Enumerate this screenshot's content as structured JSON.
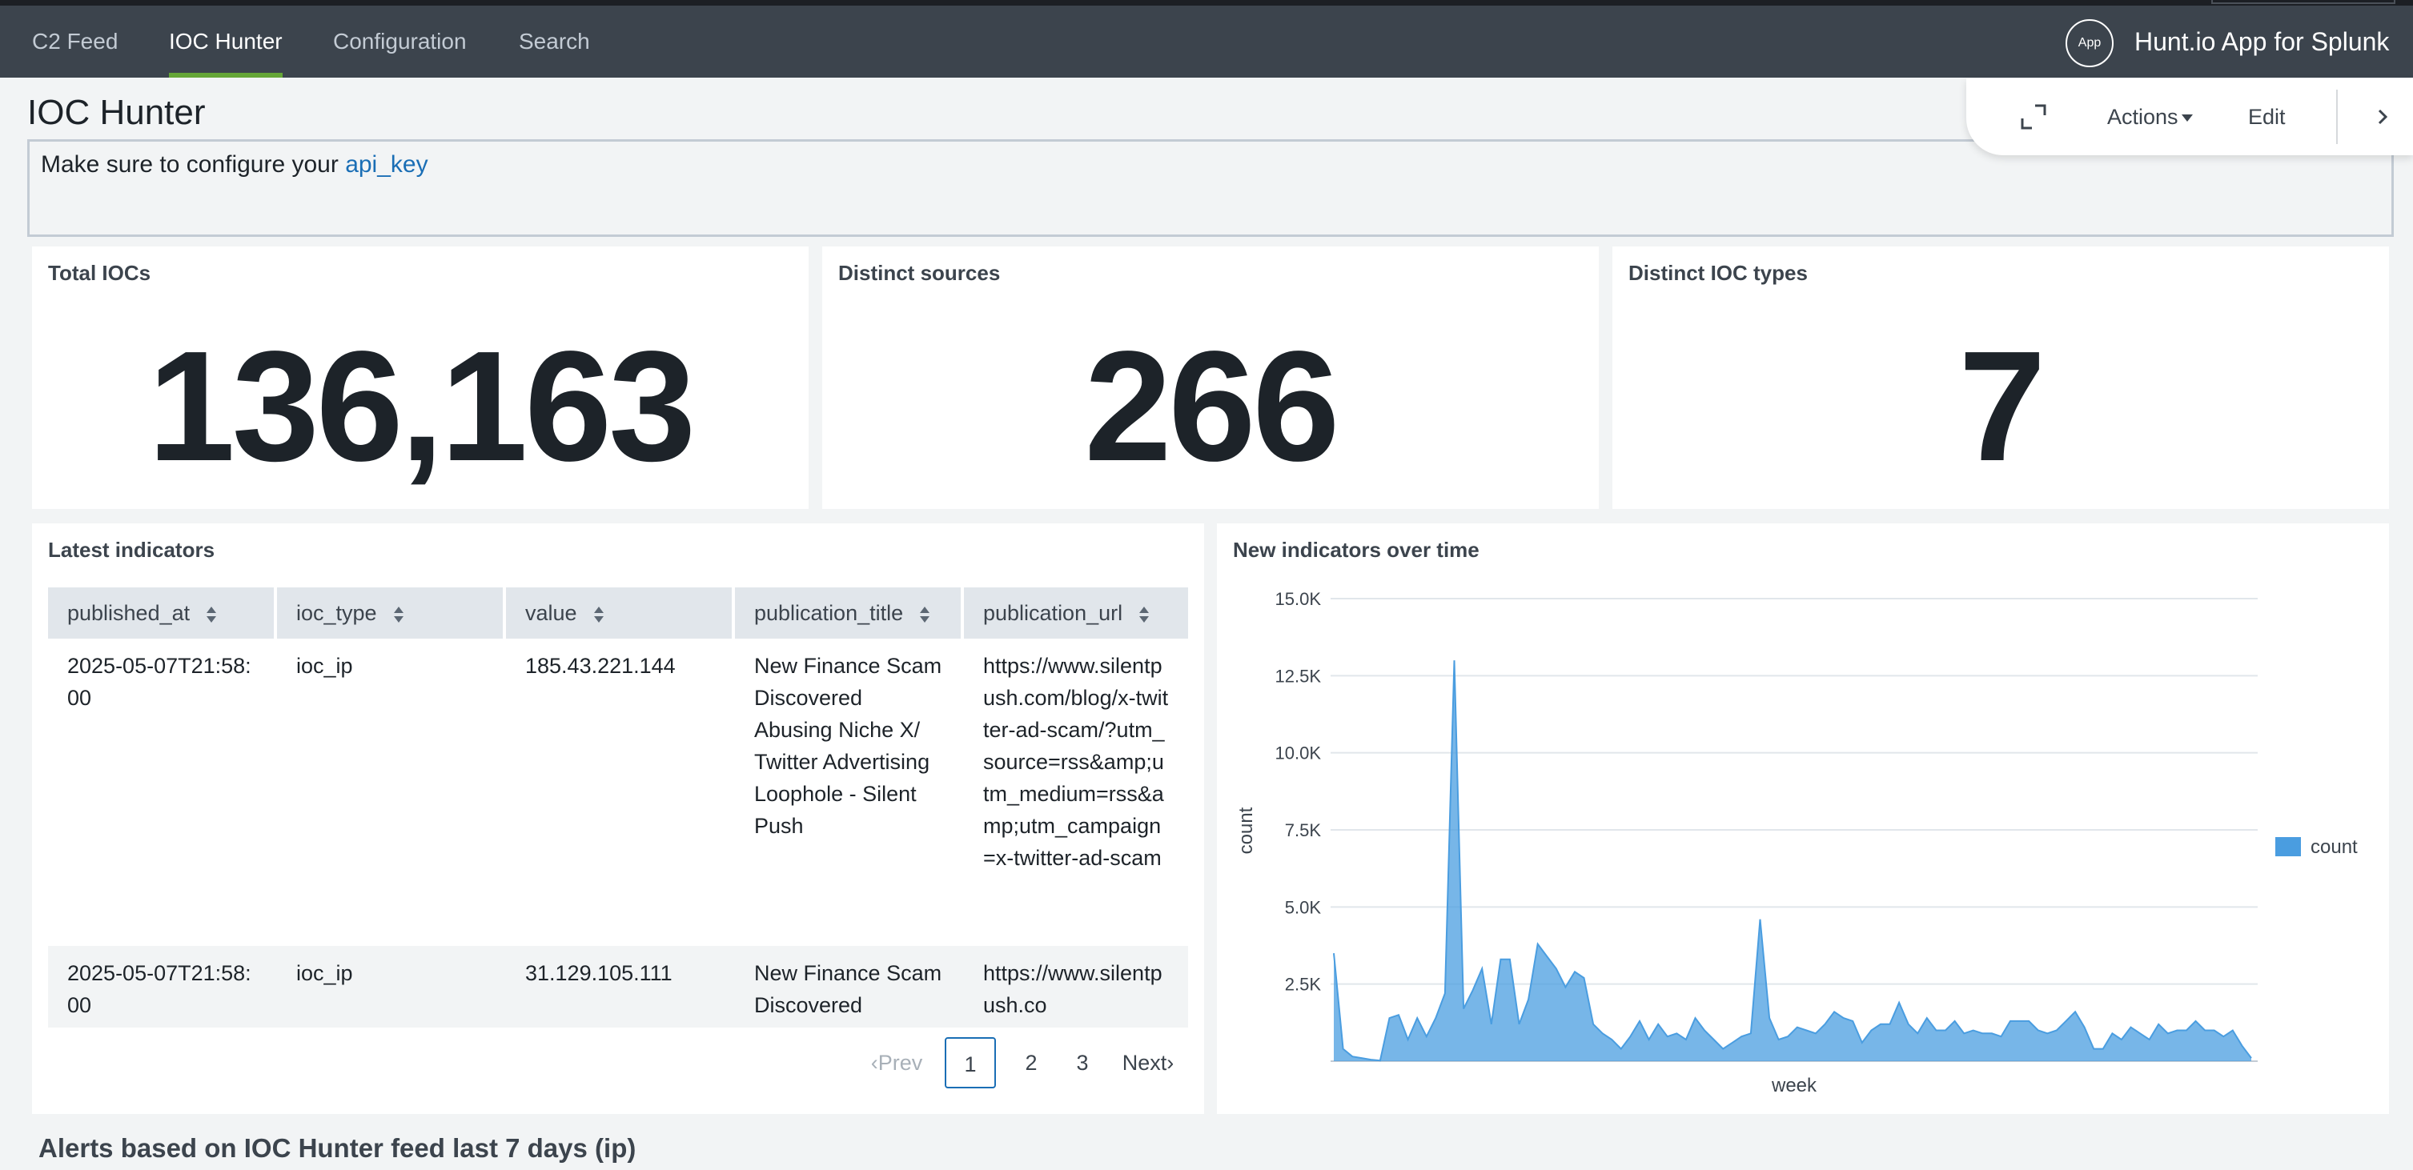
{
  "nav": {
    "items": [
      {
        "label": "C2 Feed",
        "active": false
      },
      {
        "label": "IOC Hunter",
        "active": true
      },
      {
        "label": "Configuration",
        "active": false
      },
      {
        "label": "Search",
        "active": false
      }
    ],
    "app_badge": "App",
    "app_name": "Hunt.io App for Splunk"
  },
  "page": {
    "title": "IOC Hunter",
    "notice_prefix": "Make sure to configure your ",
    "notice_link": "api_key"
  },
  "actions": {
    "actions_label": "Actions",
    "edit_label": "Edit"
  },
  "kpis": [
    {
      "title": "Total IOCs",
      "value": "136,163"
    },
    {
      "title": "Distinct sources",
      "value": "266"
    },
    {
      "title": "Distinct IOC types",
      "value": "7"
    }
  ],
  "table": {
    "title": "Latest indicators",
    "columns": [
      "published_at",
      "ioc_type",
      "value",
      "publication_title",
      "publication_url"
    ],
    "rows": [
      [
        "2025-05-07T21:58:00",
        "ioc_ip",
        "185.43.221.144",
        "New Finance Scam Discovered Abusing Niche X/ Twitter Advertising Loophole - Silent Push",
        "https://www.silentpush.com/blog/x-twitter-ad-scam/?utm_source=rss&amp;utm_medium=rss&amp;utm_campaign=x-twitter-ad-scam"
      ],
      [
        "2025-05-07T21:58:00",
        "ioc_ip",
        "31.129.105.111",
        "New Finance Scam Discovered",
        "https://www.silentpush.co"
      ]
    ],
    "pager": {
      "prev": "Prev",
      "pages": [
        "1",
        "2",
        "3"
      ],
      "current": "1",
      "next": "Next"
    }
  },
  "chart_data": {
    "type": "area",
    "title": "New indicators over time",
    "xlabel": "week",
    "ylabel": "count",
    "ylim": [
      0,
      15000
    ],
    "yticks": [
      "15.0K",
      "12.5K",
      "10.0K",
      "7.5K",
      "5.0K",
      "2.5K"
    ],
    "legend": "right",
    "series": [
      {
        "name": "count",
        "color": "#4a9de0",
        "values": [
          3500,
          400,
          150,
          100,
          50,
          20,
          1400,
          1500,
          700,
          1400,
          800,
          1400,
          2200,
          13000,
          1700,
          2300,
          3000,
          1200,
          3300,
          3300,
          1200,
          2000,
          3800,
          3400,
          3000,
          2400,
          2900,
          2700,
          1200,
          900,
          700,
          400,
          800,
          1300,
          700,
          1200,
          800,
          900,
          700,
          1400,
          1000,
          700,
          400,
          600,
          800,
          900,
          4600,
          1400,
          700,
          800,
          1100,
          1000,
          900,
          1200,
          1600,
          1400,
          1300,
          600,
          1000,
          1200,
          1200,
          1900,
          1200,
          900,
          1400,
          1000,
          1000,
          1300,
          900,
          1000,
          900,
          900,
          800,
          1300,
          1300,
          1300,
          1000,
          900,
          1000,
          1300,
          1600,
          1100,
          400,
          400,
          900,
          700,
          1100,
          900,
          700,
          1200,
          900,
          1000,
          1000,
          1300,
          1000,
          1000,
          800,
          1000,
          500,
          100
        ]
      }
    ]
  },
  "alerts_section": {
    "title": "Alerts based on IOC Hunter feed last 7 days (ip)"
  }
}
